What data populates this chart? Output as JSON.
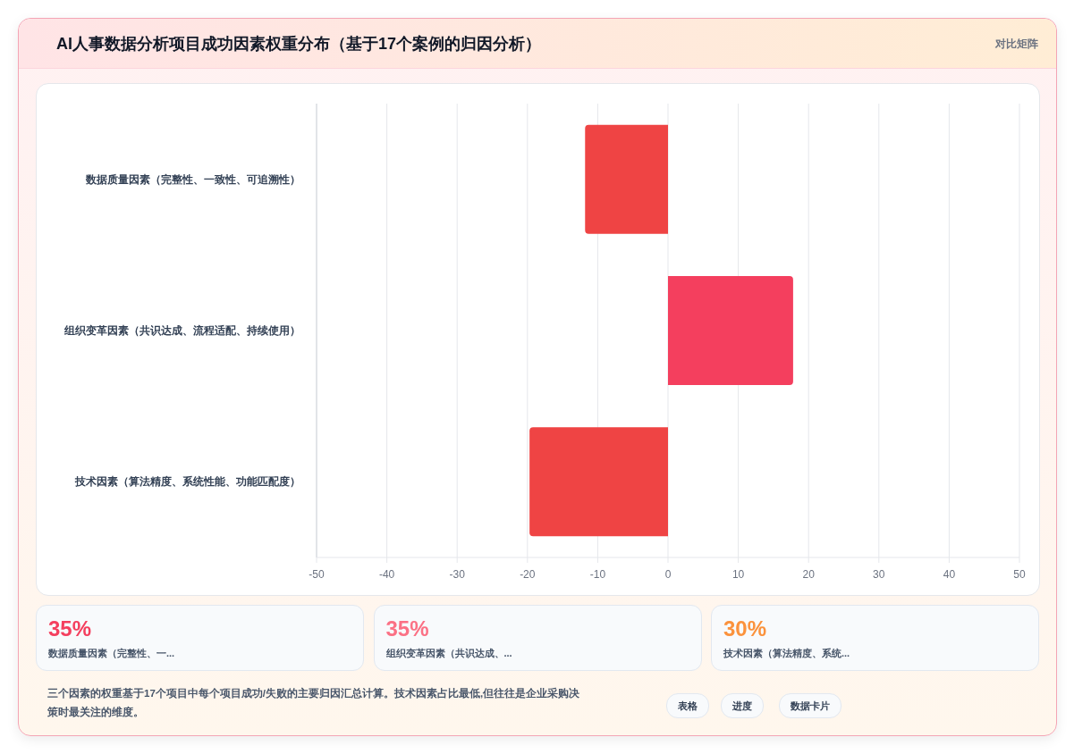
{
  "chart_data": [
    {
      "type": "bar",
      "orientation": "horizontal",
      "title": "AI人事数据分析项目成功因素权重分布（基于17个案例的归因分析）",
      "categories": [
        "数据质量因素（完整性、一致性、可追溯性）",
        "组织变革因素（共识达成、流程适配、持续使用）",
        "技术因素（算法精度、系统性能、功能匹配度）"
      ],
      "values": [
        -11.8,
        17.8,
        -19.7
      ],
      "colors": [
        "#ef4444",
        "#f43f5e",
        "#ef4444"
      ],
      "xlim": [
        -50,
        50
      ],
      "xticks": [
        -50,
        -40,
        -30,
        -20,
        -10,
        0,
        10,
        20,
        30,
        40,
        50
      ],
      "grid": "x"
    },
    {
      "type": "other",
      "annotations": [
        "对比矩阵",
        "35%",
        "数据质量因素（完整性、一...",
        "35%",
        "组织变革因素（共识达成、...",
        "30%",
        "技术因素（算法精度、系统...",
        "三个因素的权重基于17个项目中每个项目成功/失败的主要归因汇总计算。技术因素占比最低,但往往是企业采购决策时最关注的维度。",
        "表格",
        "进度",
        "数据卡片"
      ]
    }
  ]
}
